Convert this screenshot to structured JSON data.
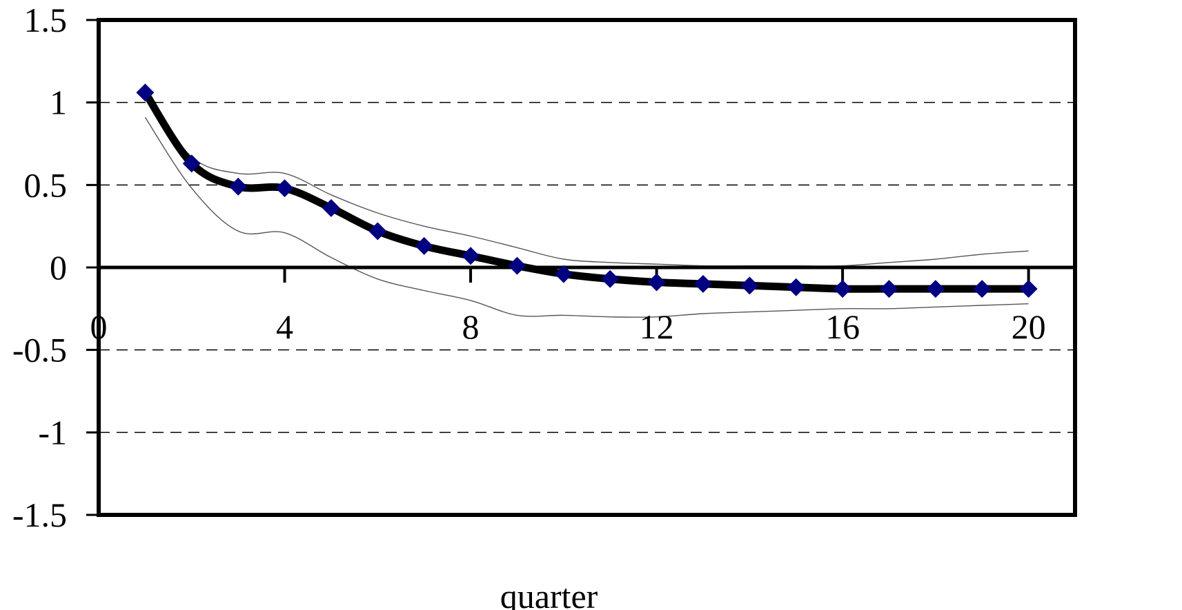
{
  "chart_data": {
    "type": "line",
    "xlabel": "quarter",
    "ylabel": "",
    "xlim": [
      0,
      21
    ],
    "ylim": [
      -1.5,
      1.5
    ],
    "x_ticks": [
      0,
      4,
      8,
      12,
      16,
      20
    ],
    "y_ticks": [
      1.5,
      1,
      0.5,
      0,
      -0.5,
      -1,
      -1.5
    ],
    "x_tick_labels": [
      "0",
      "4",
      "8",
      "12",
      "16",
      "20"
    ],
    "y_tick_labels": [
      "1.5",
      "1",
      "0.5",
      "0",
      "-0.5",
      "-1",
      "-1.5"
    ],
    "grid": "horizontal dashed",
    "series": [
      {
        "role": "estimate",
        "color": "#000000",
        "marker_color": "#000080",
        "x": [
          1,
          2,
          3,
          4,
          5,
          6,
          7,
          8,
          9,
          10,
          11,
          12,
          13,
          14,
          15,
          16,
          17,
          18,
          19,
          20
        ],
        "values": [
          1.06,
          0.63,
          0.49,
          0.48,
          0.36,
          0.22,
          0.13,
          0.07,
          0.01,
          -0.04,
          -0.07,
          -0.09,
          -0.1,
          -0.11,
          -0.12,
          -0.13,
          -0.13,
          -0.13,
          -0.13,
          -0.13
        ]
      },
      {
        "role": "upper band",
        "color": "#555555",
        "x": [
          1,
          2,
          3,
          4,
          5,
          6,
          7,
          8,
          9,
          10,
          11,
          12,
          13,
          14,
          15,
          16,
          17,
          18,
          19,
          20
        ],
        "values": [
          1.06,
          0.67,
          0.57,
          0.57,
          0.44,
          0.33,
          0.25,
          0.19,
          0.12,
          0.05,
          0.03,
          0.02,
          0.01,
          0.01,
          0.01,
          0.01,
          0.03,
          0.05,
          0.08,
          0.1
        ]
      },
      {
        "role": "lower band",
        "color": "#555555",
        "x": [
          1,
          2,
          3,
          4,
          5,
          6,
          7,
          8,
          9,
          10,
          11,
          12,
          13,
          14,
          15,
          16,
          17,
          18,
          19,
          20
        ],
        "values": [
          0.91,
          0.48,
          0.22,
          0.21,
          0.06,
          -0.07,
          -0.14,
          -0.2,
          -0.29,
          -0.29,
          -0.3,
          -0.3,
          -0.28,
          -0.27,
          -0.26,
          -0.25,
          -0.25,
          -0.24,
          -0.23,
          -0.22
        ]
      }
    ]
  }
}
